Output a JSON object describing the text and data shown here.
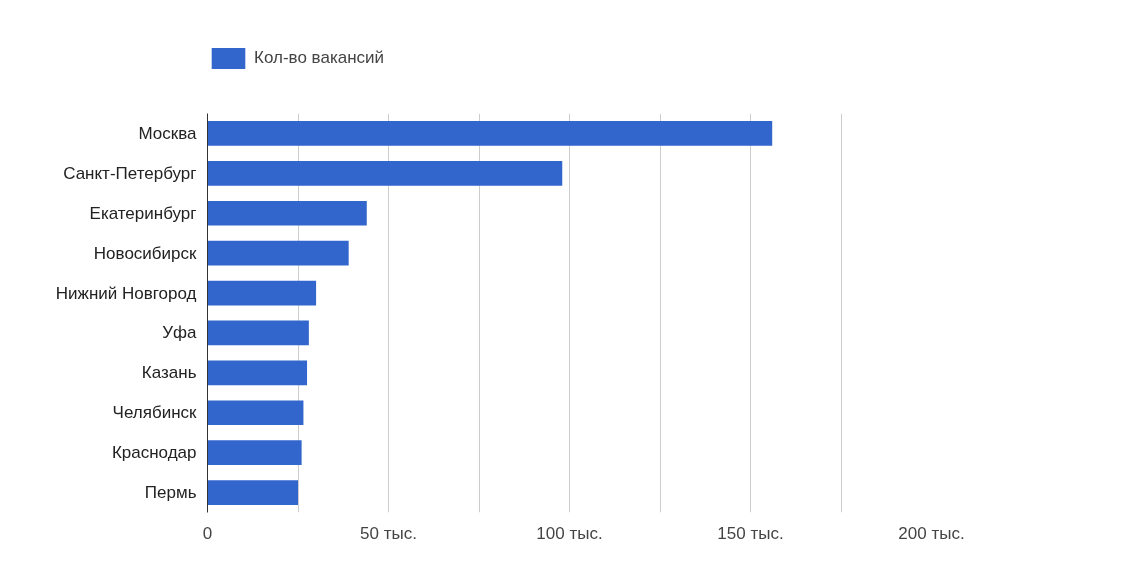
{
  "chart_data": {
    "type": "bar",
    "orientation": "horizontal",
    "categories": [
      "Москва",
      "Санкт-Петербург",
      "Екатеринбург",
      "Новосибирск",
      "Нижний Новгород",
      "Уфа",
      "Казань",
      "Челябинск",
      "Краснодар",
      "Пермь"
    ],
    "series": [
      {
        "name": "Кол-во вакансий",
        "color": "#3366cc",
        "values": [
          156,
          98,
          44,
          39,
          30,
          28,
          27.5,
          26.5,
          26,
          25
        ]
      }
    ],
    "xlim": [
      0,
      200
    ],
    "xticks": [
      0,
      {
        "value": 25,
        "label": null
      },
      {
        "value": 50,
        "label": "50 тыс."
      },
      {
        "value": 75,
        "label": null
      },
      {
        "value": 100,
        "label": "100 тыс."
      },
      {
        "value": 125,
        "label": null
      },
      {
        "value": 150,
        "label": "150 тыс."
      },
      {
        "value": 175,
        "label": null
      },
      {
        "value": 200,
        "label": "200 тыс."
      }
    ],
    "grid": "x",
    "legend": "top"
  }
}
